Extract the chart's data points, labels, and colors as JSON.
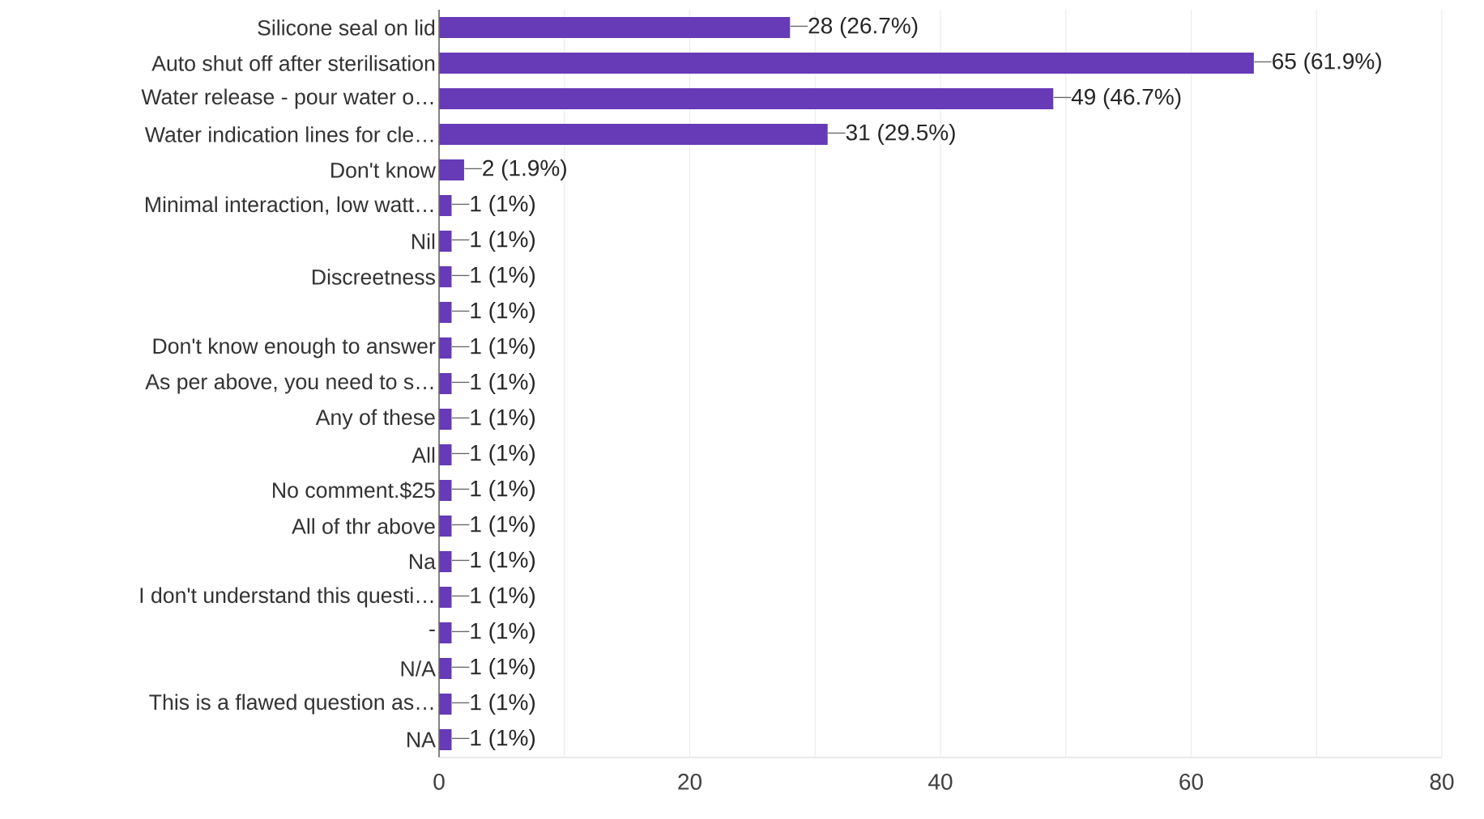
{
  "chart_data": {
    "type": "bar",
    "orientation": "horizontal",
    "color": "#673ab7",
    "grid": "x",
    "categories": [
      "Silicone seal on lid",
      "Auto shut off after sterilisation",
      "Water release - pour water o…",
      "Water indication lines for cle…",
      "Don't know",
      "Minimal interaction, low watt…",
      "Nil",
      "Discreetness",
      null,
      "Don't know enough to answer",
      "As per above, you need to s…",
      "Any of these",
      "All",
      "No comment.$25",
      "All of thr above",
      "Na",
      "I don't understand this questi…",
      "-",
      "N/A",
      "This is a flawed question as…",
      "NA"
    ],
    "values": [
      28,
      65,
      49,
      31,
      2,
      1,
      1,
      1,
      1,
      1,
      1,
      1,
      1,
      1,
      1,
      1,
      1,
      1,
      1,
      1,
      1
    ],
    "value_labels": [
      "28 (26.7%)",
      "65 (61.9%)",
      "49 (46.7%)",
      "31 (29.5%)",
      "2 (1.9%)",
      "1 (1%)",
      "1 (1%)",
      "1 (1%)",
      "1 (1%)",
      "1 (1%)",
      "1 (1%)",
      "1 (1%)",
      "1 (1%)",
      "1 (1%)",
      "1 (1%)",
      "1 (1%)",
      "1 (1%)",
      "1 (1%)",
      "1 (1%)",
      "1 (1%)",
      "1 (1%)"
    ],
    "xlim": [
      0,
      80
    ],
    "xticks": [
      0,
      {
        "value": 10,
        "label": null
      },
      20,
      {
        "value": 30,
        "label": null
      },
      40,
      {
        "value": 50,
        "label": null
      },
      60,
      {
        "value": 70,
        "label": null
      },
      80
    ]
  }
}
